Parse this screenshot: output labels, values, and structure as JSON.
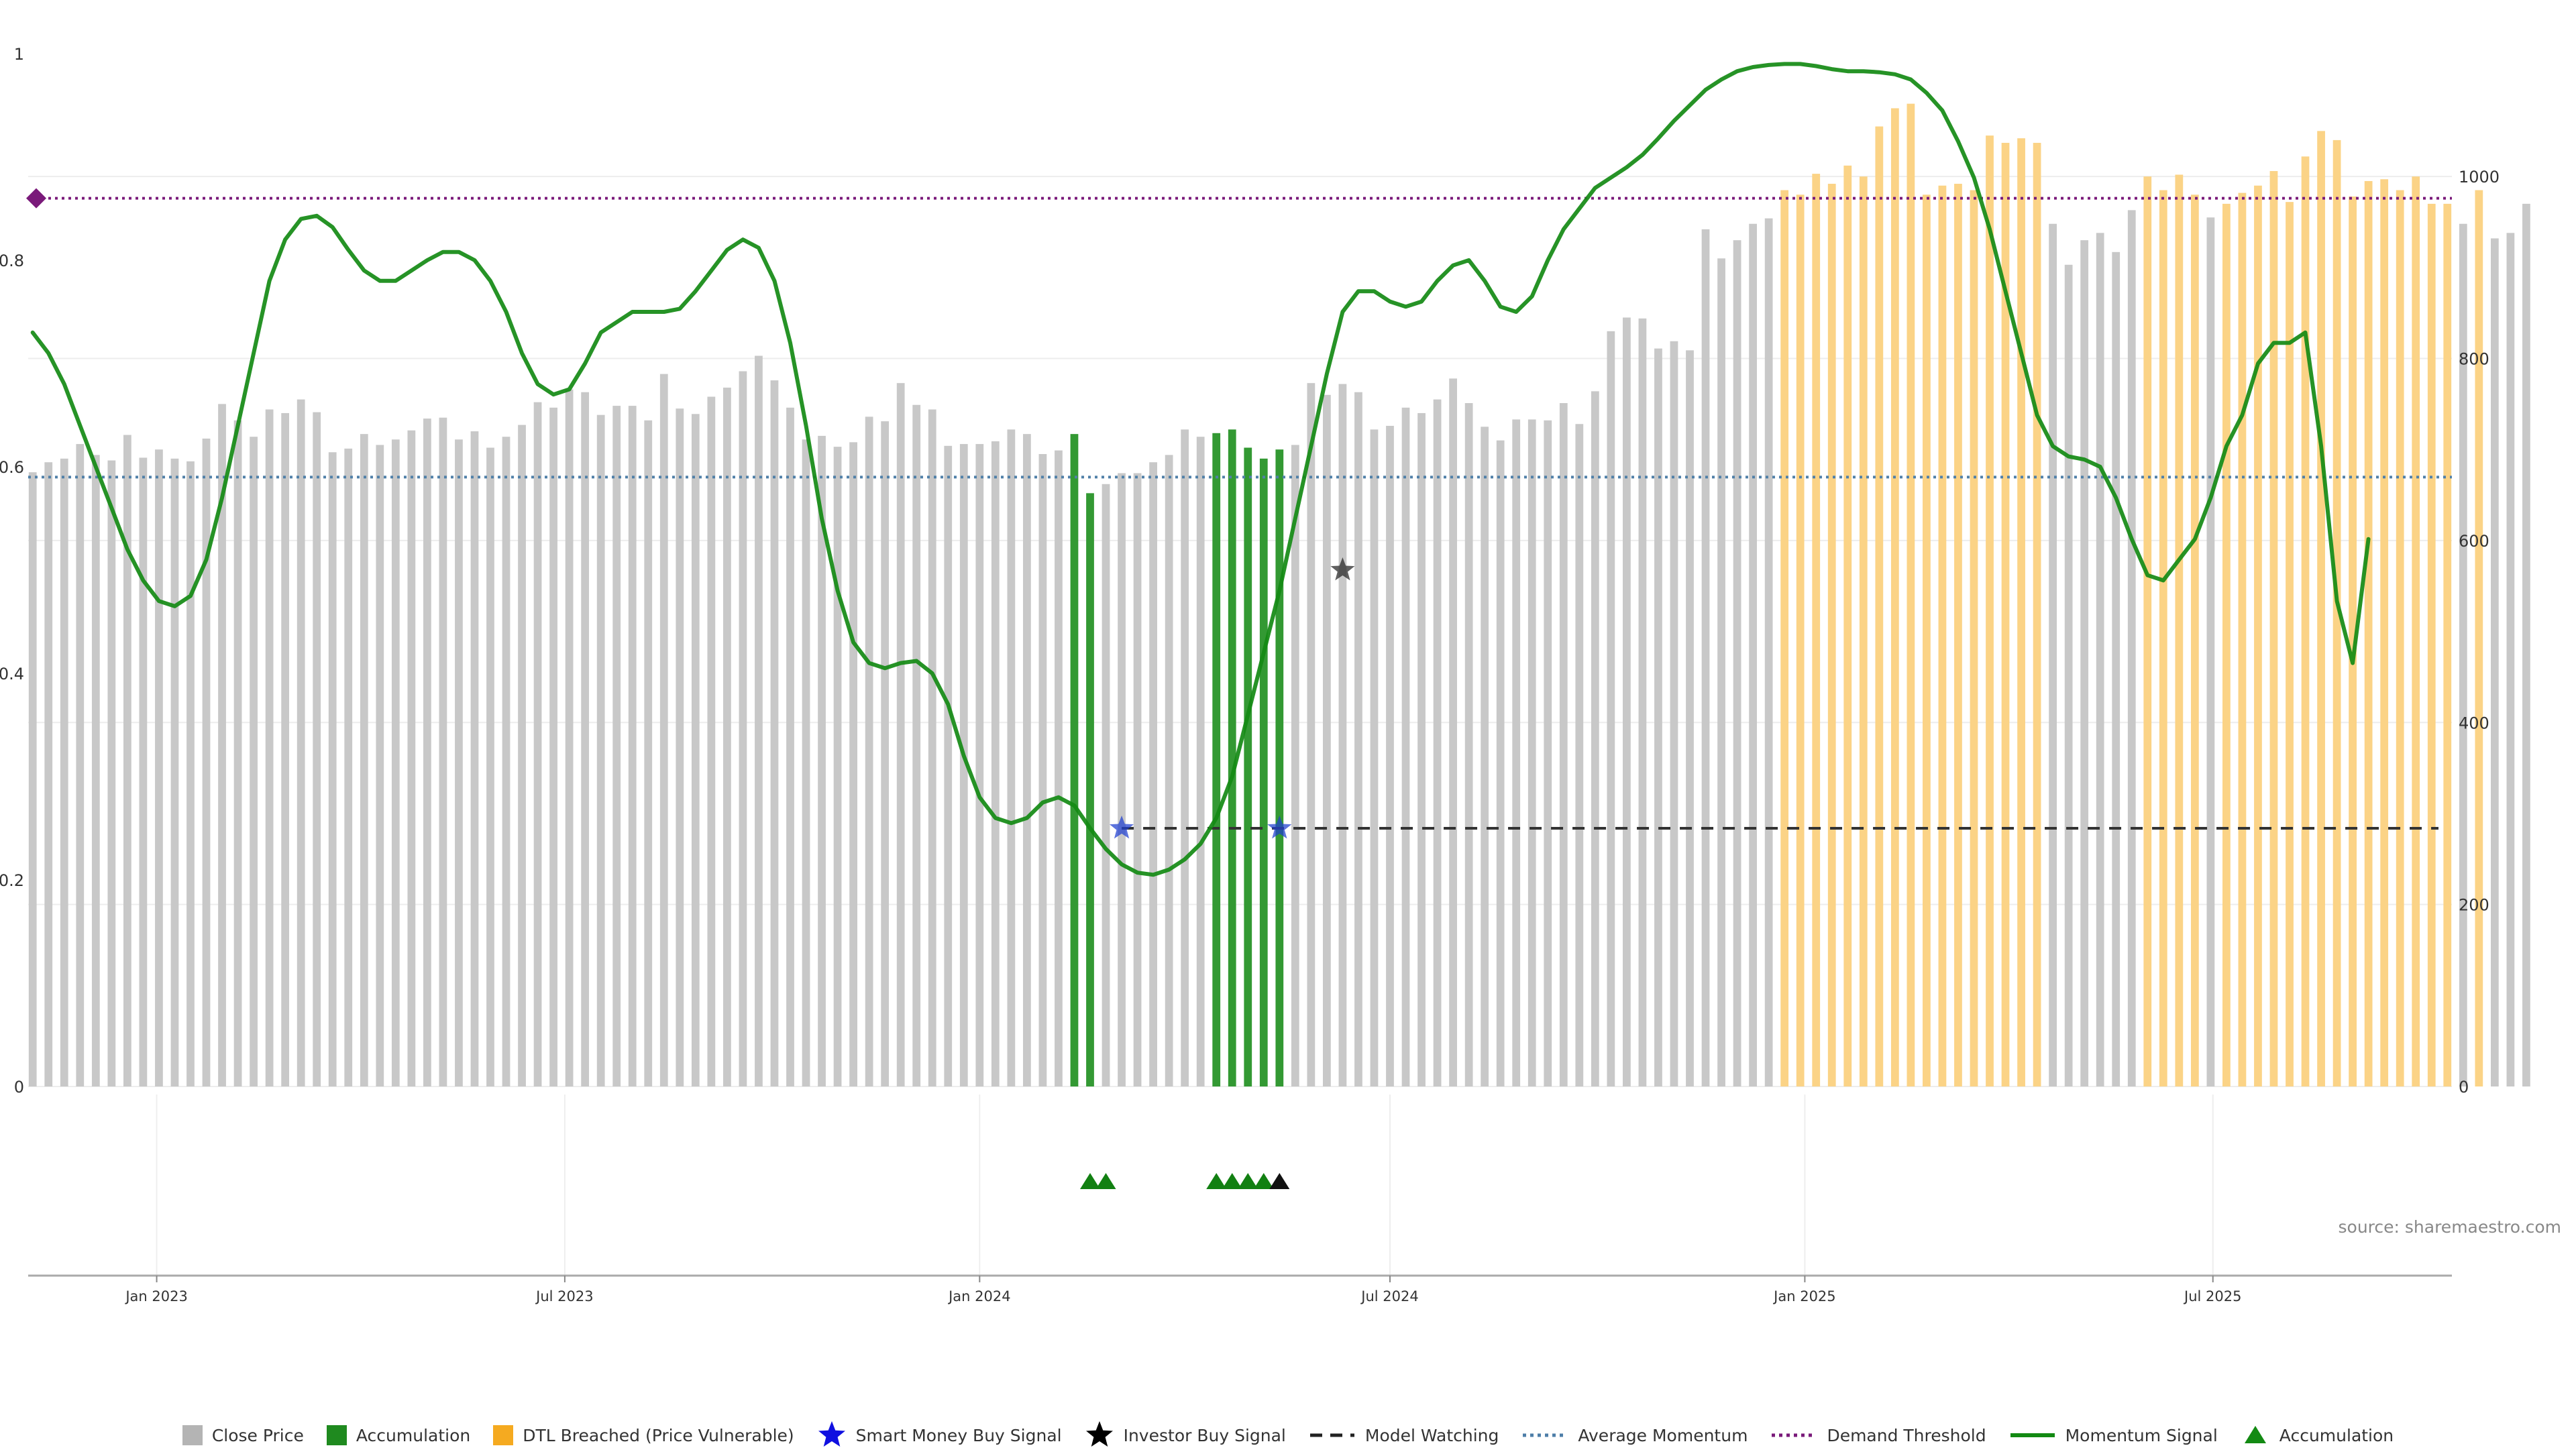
{
  "chart_data": {
    "type": "bar",
    "title": "",
    "xlabel": "",
    "ylabel": "",
    "x_ticks": [
      "Jan 2023",
      "Jul 2023",
      "Jan 2024",
      "Jul 2024",
      "Jan 2025",
      "Jul 2025"
    ],
    "x_tick_dates": [
      "2023-01-01",
      "2023-07-01",
      "2024-01-01",
      "2024-07-01",
      "2025-01-01",
      "2025-07-01"
    ],
    "x_range": [
      "2022-11-05",
      "2025-10-15"
    ],
    "left_axis": {
      "ylim": [
        0,
        1
      ],
      "ticks": [
        "0",
        "0.2",
        "0.4",
        "0.6",
        "0.8",
        "1"
      ]
    },
    "right_axis": {
      "ylim": [
        0,
        1135
      ],
      "ticks": [
        "0",
        "200",
        "400",
        "600",
        "800",
        "1000"
      ]
    },
    "grid": "horizontal",
    "bar_width_days": 3.5,
    "bar_start_date": "2022-11-07",
    "bar_step_days": 7,
    "bar_colors": {
      "close": "#c8c8c8",
      "accumulation": "#339933",
      "dtl": "#fbd386"
    },
    "bars": [
      [
        675,
        "close"
      ],
      [
        686,
        "close"
      ],
      [
        690,
        "close"
      ],
      [
        706,
        "close"
      ],
      [
        694,
        "close"
      ],
      [
        688,
        "close"
      ],
      [
        716,
        "close"
      ],
      [
        691,
        "close"
      ],
      [
        700,
        "close"
      ],
      [
        690,
        "close"
      ],
      [
        687,
        "close"
      ],
      [
        712,
        "close"
      ],
      [
        750,
        "close"
      ],
      [
        732,
        "close"
      ],
      [
        714,
        "close"
      ],
      [
        744,
        "close"
      ],
      [
        740,
        "close"
      ],
      [
        755,
        "close"
      ],
      [
        741,
        "close"
      ],
      [
        697,
        "close"
      ],
      [
        701,
        "close"
      ],
      [
        717,
        "close"
      ],
      [
        705,
        "close"
      ],
      [
        711,
        "close"
      ],
      [
        721,
        "close"
      ],
      [
        734,
        "close"
      ],
      [
        735,
        "close"
      ],
      [
        711,
        "close"
      ],
      [
        720,
        "close"
      ],
      [
        702,
        "close"
      ],
      [
        714,
        "close"
      ],
      [
        727,
        "close"
      ],
      [
        752,
        "close"
      ],
      [
        746,
        "close"
      ],
      [
        766,
        "close"
      ],
      [
        763,
        "close"
      ],
      [
        738,
        "close"
      ],
      [
        748,
        "close"
      ],
      [
        748,
        "close"
      ],
      [
        732,
        "close"
      ],
      [
        783,
        "close"
      ],
      [
        745,
        "close"
      ],
      [
        739,
        "close"
      ],
      [
        758,
        "close"
      ],
      [
        768,
        "close"
      ],
      [
        786,
        "close"
      ],
      [
        803,
        "close"
      ],
      [
        776,
        "close"
      ],
      [
        746,
        "close"
      ],
      [
        711,
        "close"
      ],
      [
        715,
        "close"
      ],
      [
        703,
        "close"
      ],
      [
        708,
        "close"
      ],
      [
        736,
        "close"
      ],
      [
        731,
        "close"
      ],
      [
        773,
        "close"
      ],
      [
        749,
        "close"
      ],
      [
        744,
        "close"
      ],
      [
        704,
        "close"
      ],
      [
        706,
        "close"
      ],
      [
        706,
        "close"
      ],
      [
        709,
        "close"
      ],
      [
        722,
        "close"
      ],
      [
        717,
        "close"
      ],
      [
        695,
        "close"
      ],
      [
        699,
        "close"
      ],
      [
        717,
        "accumulation"
      ],
      [
        652,
        "accumulation"
      ],
      [
        662,
        "close"
      ],
      [
        674,
        "close"
      ],
      [
        674,
        "close"
      ],
      [
        686,
        "close"
      ],
      [
        694,
        "close"
      ],
      [
        722,
        "close"
      ],
      [
        714,
        "close"
      ],
      [
        718,
        "accumulation"
      ],
      [
        722,
        "accumulation"
      ],
      [
        702,
        "accumulation"
      ],
      [
        690,
        "accumulation"
      ],
      [
        700,
        "accumulation"
      ],
      [
        705,
        "close"
      ],
      [
        773,
        "close"
      ],
      [
        760,
        "close"
      ],
      [
        772,
        "close"
      ],
      [
        763,
        "close"
      ],
      [
        722,
        "close"
      ],
      [
        726,
        "close"
      ],
      [
        746,
        "close"
      ],
      [
        740,
        "close"
      ],
      [
        755,
        "close"
      ],
      [
        778,
        "close"
      ],
      [
        751,
        "close"
      ],
      [
        725,
        "close"
      ],
      [
        710,
        "close"
      ],
      [
        733,
        "close"
      ],
      [
        733,
        "close"
      ],
      [
        732,
        "close"
      ],
      [
        751,
        "close"
      ],
      [
        728,
        "close"
      ],
      [
        764,
        "close"
      ],
      [
        830,
        "close"
      ],
      [
        845,
        "close"
      ],
      [
        844,
        "close"
      ],
      [
        811,
        "close"
      ],
      [
        819,
        "close"
      ],
      [
        809,
        "close"
      ],
      [
        942,
        "close"
      ],
      [
        910,
        "close"
      ],
      [
        930,
        "close"
      ],
      [
        948,
        "close"
      ],
      [
        954,
        "close"
      ],
      [
        985,
        "dtl"
      ],
      [
        980,
        "dtl"
      ],
      [
        1003,
        "dtl"
      ],
      [
        992,
        "dtl"
      ],
      [
        1012,
        "dtl"
      ],
      [
        1000,
        "dtl"
      ],
      [
        1055,
        "dtl"
      ],
      [
        1075,
        "dtl"
      ],
      [
        1080,
        "dtl"
      ],
      [
        980,
        "dtl"
      ],
      [
        990,
        "dtl"
      ],
      [
        992,
        "dtl"
      ],
      [
        985,
        "dtl"
      ],
      [
        1045,
        "dtl"
      ],
      [
        1037,
        "dtl"
      ],
      [
        1042,
        "dtl"
      ],
      [
        1037,
        "dtl"
      ],
      [
        948,
        "close"
      ],
      [
        903,
        "close"
      ],
      [
        930,
        "close"
      ],
      [
        938,
        "close"
      ],
      [
        917,
        "close"
      ],
      [
        963,
        "close"
      ],
      [
        1000,
        "dtl"
      ],
      [
        985,
        "dtl"
      ],
      [
        1002,
        "dtl"
      ],
      [
        980,
        "dtl"
      ],
      [
        955,
        "close"
      ],
      [
        970,
        "dtl"
      ],
      [
        982,
        "dtl"
      ],
      [
        990,
        "dtl"
      ],
      [
        1006,
        "dtl"
      ],
      [
        972,
        "dtl"
      ],
      [
        1022,
        "dtl"
      ],
      [
        1050,
        "dtl"
      ],
      [
        1040,
        "dtl"
      ],
      [
        978,
        "dtl"
      ],
      [
        995,
        "dtl"
      ],
      [
        997,
        "dtl"
      ],
      [
        985,
        "dtl"
      ],
      [
        1000,
        "dtl"
      ],
      [
        970,
        "dtl"
      ],
      [
        970,
        "dtl"
      ],
      [
        948,
        "close"
      ],
      [
        985,
        "dtl"
      ],
      [
        932,
        "close"
      ],
      [
        938,
        "close"
      ],
      [
        970,
        "close"
      ]
    ],
    "series": [
      {
        "name": "Momentum Signal",
        "type": "line",
        "axis": "left",
        "color": "#138a13",
        "x_start_date": "2022-11-07",
        "step_days": 7,
        "values": [
          0.73,
          0.71,
          0.68,
          0.64,
          0.6,
          0.56,
          0.52,
          0.49,
          0.47,
          0.465,
          0.475,
          0.51,
          0.57,
          0.64,
          0.71,
          0.78,
          0.82,
          0.84,
          0.843,
          0.832,
          0.81,
          0.79,
          0.78,
          0.78,
          0.79,
          0.8,
          0.808,
          0.808,
          0.8,
          0.78,
          0.75,
          0.71,
          0.68,
          0.67,
          0.675,
          0.7,
          0.73,
          0.74,
          0.75,
          0.75,
          0.75,
          0.753,
          0.77,
          0.79,
          0.81,
          0.82,
          0.812,
          0.78,
          0.72,
          0.64,
          0.55,
          0.48,
          0.43,
          0.41,
          0.405,
          0.41,
          0.412,
          0.4,
          0.37,
          0.32,
          0.28,
          0.26,
          0.255,
          0.26,
          0.275,
          0.28,
          0.272,
          0.25,
          0.23,
          0.215,
          0.207,
          0.205,
          0.21,
          0.22,
          0.235,
          0.26,
          0.3,
          0.36,
          0.42,
          0.48,
          0.55,
          0.62,
          0.69,
          0.75,
          0.77,
          0.77,
          0.76,
          0.755,
          0.76,
          0.78,
          0.795,
          0.8,
          0.78,
          0.755,
          0.75,
          0.765,
          0.8,
          0.83,
          0.85,
          0.87,
          0.88,
          0.89,
          0.902,
          0.918,
          0.935,
          0.95,
          0.965,
          0.975,
          0.983,
          0.987,
          0.989,
          0.99,
          0.99,
          0.988,
          0.985,
          0.983,
          0.983,
          0.982,
          0.98,
          0.975,
          0.962,
          0.945,
          0.915,
          0.88,
          0.83,
          0.77,
          0.71,
          0.65,
          0.62,
          0.61,
          0.607,
          0.6,
          0.57,
          0.53,
          0.495,
          0.49,
          0.51,
          0.53,
          0.57,
          0.62,
          0.65,
          0.7,
          0.72,
          0.72,
          0.73,
          0.62,
          0.47,
          0.41,
          0.53
        ]
      },
      {
        "name": "Average Momentum",
        "type": "hline",
        "axis": "left",
        "y": 0.59,
        "color": "#5080a8"
      },
      {
        "name": "Demand Threshold",
        "type": "hline",
        "axis": "left",
        "y": 0.86,
        "color": "#7a1a7a"
      },
      {
        "name": "Model Watching",
        "type": "hline-segment",
        "axis": "left",
        "y": 0.25,
        "x_from": "2024-03-04",
        "color": "#333333"
      },
      {
        "name": "Smart Money Buy Signal",
        "type": "scatter",
        "axis": "left",
        "marker": "star",
        "color": "#1f3fd0",
        "points": [
          [
            "2024-03-04",
            0.25
          ],
          [
            "2024-05-13",
            0.25
          ]
        ]
      },
      {
        "name": "Investor Buy Signal",
        "type": "scatter",
        "axis": "left",
        "marker": "star",
        "color": "#222222",
        "points": [
          [
            "2024-06-10",
            0.5
          ]
        ]
      },
      {
        "name": "Accumulation",
        "type": "scatter",
        "axis": "strip",
        "marker": "triangle",
        "color": "#128012",
        "points": [
          "2024-02-19",
          "2024-02-26",
          "2024-04-15",
          "2024-04-22",
          "2024-04-29",
          "2024-05-06"
        ]
      },
      {
        "name": "Investor Signal Strip",
        "type": "scatter",
        "axis": "strip",
        "marker": "triangle",
        "color": "#111111",
        "points": [
          "2024-05-13"
        ]
      }
    ],
    "source": "source: sharemaestro.com",
    "legend_placement": "bottom-center"
  },
  "legend": {
    "items": [
      {
        "label": "Close Price",
        "swatch": "square",
        "color": "#b4b4b4"
      },
      {
        "label": "Accumulation",
        "swatch": "square",
        "color": "#1f8a1f"
      },
      {
        "label": "DTL Breached (Price Vulnerable)",
        "swatch": "square",
        "color": "#f5aa20"
      },
      {
        "label": "Smart Money Buy Signal",
        "swatch": "star",
        "color": "#1010e0"
      },
      {
        "label": "Investor Buy Signal",
        "swatch": "star",
        "color": "#000000"
      },
      {
        "label": "Model Watching",
        "swatch": "dash",
        "color": "#222222"
      },
      {
        "label": "Average Momentum",
        "swatch": "dot-line",
        "color": "#4d7ea8"
      },
      {
        "label": "Demand Threshold",
        "swatch": "dot-line",
        "color": "#7a1a7a"
      },
      {
        "label": "Momentum Signal",
        "swatch": "solid-line",
        "color": "#138a13"
      },
      {
        "label": "Accumulation",
        "swatch": "triangle",
        "color": "#138a13"
      }
    ]
  }
}
